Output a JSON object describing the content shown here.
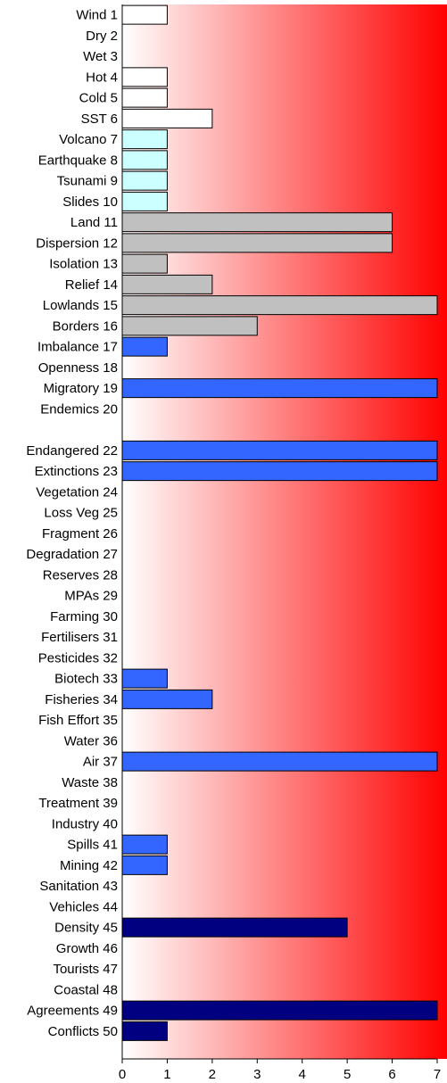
{
  "chart_data": {
    "type": "bar",
    "orientation": "horizontal",
    "categories": [
      "Wind 1",
      "Dry 2",
      "Wet 3",
      "Hot 4",
      "Cold 5",
      "SST 6",
      "Volcano 7",
      "Earthquake 8",
      "Tsunami 9",
      "Slides 10",
      "Land 11",
      "Dispersion 12",
      "Isolation 13",
      "Relief 14",
      "Lowlands 15",
      "Borders 16",
      "Imbalance 17",
      "Openness 18",
      "Migratory 19",
      "Endemics 20",
      "",
      "Endangered 22",
      "Extinctions 23",
      "Vegetation 24",
      "Loss Veg 25",
      "Fragment 26",
      "Degradation 27",
      "Reserves 28",
      "MPAs 29",
      "Farming 30",
      "Fertilisers 31",
      "Pesticides 32",
      "Biotech 33",
      "Fisheries 34",
      "Fish Effort 35",
      "Water 36",
      "Air 37",
      "Waste 38",
      "Treatment 39",
      "Industry 40",
      "Spills 41",
      "Mining 42",
      "Sanitation 43",
      "Vehicles 44",
      "Density 45",
      "Growth 46",
      "Tourists 47",
      "Coastal 48",
      "Agreements 49",
      "Conflicts 50"
    ],
    "values": [
      1,
      0,
      0,
      1,
      1,
      2,
      1,
      1,
      1,
      1,
      6,
      6,
      1,
      2,
      7,
      3,
      1,
      0,
      7,
      0,
      0,
      7,
      7,
      0,
      0,
      0,
      0,
      0,
      0,
      0,
      0,
      0,
      1,
      2,
      0,
      0,
      7,
      0,
      0,
      0,
      1,
      1,
      0,
      0,
      5,
      0,
      0,
      0,
      7,
      1
    ],
    "bar_colors": [
      "#ffffff",
      "#ffffff",
      "#ffffff",
      "#ffffff",
      "#ffffff",
      "#ffffff",
      "#ccffff",
      "#ccffff",
      "#ccffff",
      "#ccffff",
      "#c0c0c0",
      "#c0c0c0",
      "#c0c0c0",
      "#c0c0c0",
      "#c0c0c0",
      "#c0c0c0",
      "#3366ff",
      "#3366ff",
      "#3366ff",
      "#3366ff",
      "#3366ff",
      "#3366ff",
      "#3366ff",
      "#3366ff",
      "#3366ff",
      "#3366ff",
      "#3366ff",
      "#3366ff",
      "#3366ff",
      "#3366ff",
      "#3366ff",
      "#3366ff",
      "#3366ff",
      "#3366ff",
      "#3366ff",
      "#3366ff",
      "#3366ff",
      "#3366ff",
      "#3366ff",
      "#3366ff",
      "#3366ff",
      "#3366ff",
      "#3366ff",
      "#3366ff",
      "#000080",
      "#000080",
      "#000080",
      "#000080",
      "#000080",
      "#000080"
    ],
    "xlim": [
      0,
      7
    ],
    "xticks": [
      "0",
      "1",
      "2",
      "3",
      "4",
      "5",
      "6",
      "7"
    ],
    "background_gradient": [
      "#ffffff",
      "#ff0000"
    ],
    "grid": false,
    "title": "",
    "xlabel": "",
    "ylabel": ""
  }
}
